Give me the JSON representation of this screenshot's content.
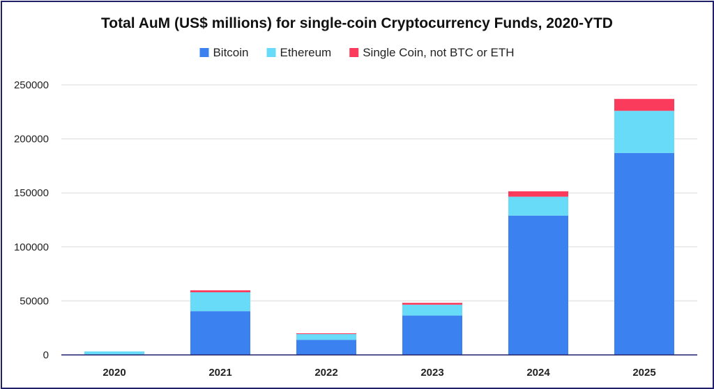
{
  "chart_data": {
    "type": "bar",
    "stacked": true,
    "title": "Total AuM (US$ millions) for single-coin Cryptocurrency Funds, 2020-YTD",
    "xlabel": "",
    "ylabel": "",
    "categories": [
      "2020",
      "2021",
      "2022",
      "2023",
      "2024",
      "2025"
    ],
    "series": [
      {
        "name": "Bitcoin",
        "color": "#3b82f0",
        "values": [
          0,
          40500,
          14000,
          36500,
          129000,
          187000
        ]
      },
      {
        "name": "Ethereum",
        "color": "#67dbf7",
        "values": [
          3200,
          17500,
          5300,
          10000,
          17500,
          39000
        ]
      },
      {
        "name": "Single Coin, not BTC or ETH",
        "color": "#fb3b5c",
        "values": [
          0,
          1800,
          700,
          1700,
          5000,
          11000
        ]
      }
    ],
    "ylim": [
      0,
      250000
    ],
    "yticks": [
      0,
      50000,
      100000,
      150000,
      200000,
      250000
    ],
    "grid": true,
    "legend_position": "top-center"
  }
}
